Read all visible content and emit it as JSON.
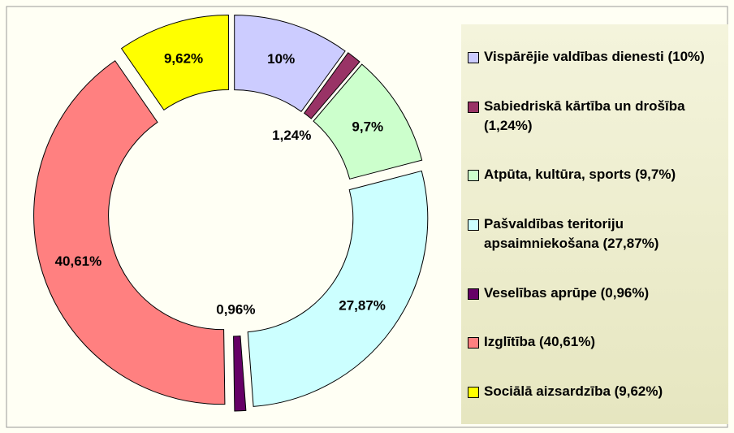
{
  "chart_data": {
    "type": "donut",
    "categories": [
      "Vispārējie valdības dienesti (10%)",
      "Sabiedriskā kārtība un drošība (1,24%)",
      "Atpūta, kultūra, sports (9,7%)",
      "Pašvaldības teritoriju apsaimniekošana (27,87%)",
      "Veselības aprūpe (0,96%)",
      "Izglītība (40,61%)",
      "Sociālā aizsardzība (9,62%)"
    ],
    "values": [
      10,
      1.24,
      9.7,
      27.87,
      0.96,
      40.61,
      9.62
    ],
    "value_labels": [
      "10%",
      "1,24%",
      "9,7%",
      "27,87%",
      "0,96%",
      "40,61%",
      "9,62%"
    ],
    "colors": [
      "#ccccff",
      "#993366",
      "#ccffcc",
      "#ccffff",
      "#660066",
      "#ff8080",
      "#ffff00"
    ],
    "legend": "right"
  }
}
